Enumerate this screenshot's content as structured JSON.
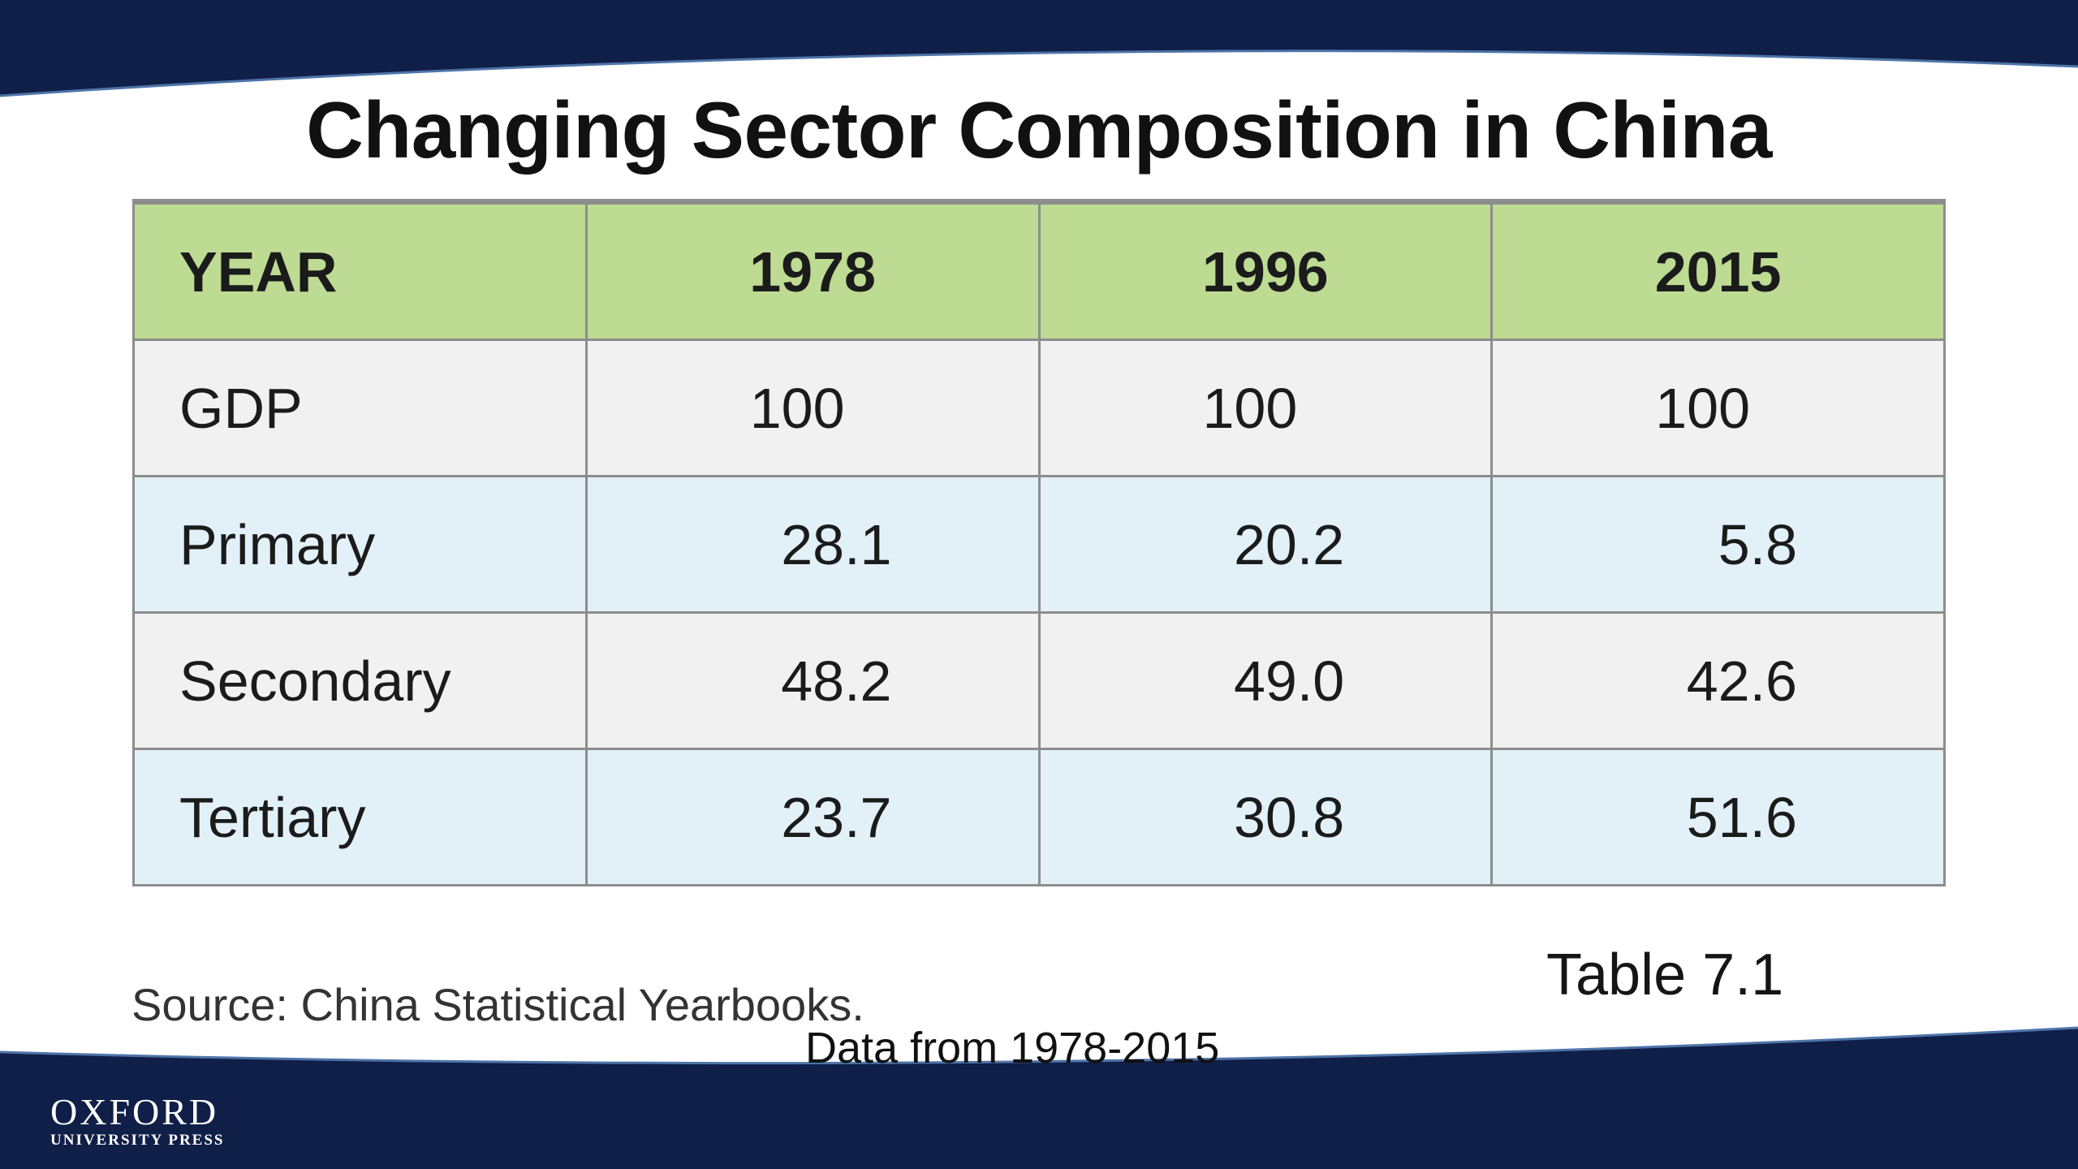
{
  "title": "Changing Sector Composition in China",
  "table": {
    "headers": [
      "YEAR",
      "1978",
      "1996",
      "2015"
    ],
    "rows": [
      {
        "label": "GDP",
        "values": [
          "100",
          "100",
          "100"
        ]
      },
      {
        "label": "Primary",
        "values": [
          "28.1",
          "20.2",
          "5.8"
        ]
      },
      {
        "label": "Secondary",
        "values": [
          "48.2",
          "49.0",
          "42.6"
        ]
      },
      {
        "label": "Tertiary",
        "values": [
          "23.7",
          "30.8",
          "51.6"
        ]
      }
    ]
  },
  "table_label": "Table 7.1",
  "source": "Source: China Statistical Yearbooks.",
  "data_range": "Data from 1978-2015",
  "publisher": {
    "line1": "OXFORD",
    "line2": "UNIVERSITY PRESS"
  },
  "colors": {
    "navy_band": "#0f1f48",
    "header_green": "#bddb92",
    "row_grey": "#f1f1f2",
    "row_blue": "#e2f1f7",
    "grid": "#8d8d8d"
  }
}
